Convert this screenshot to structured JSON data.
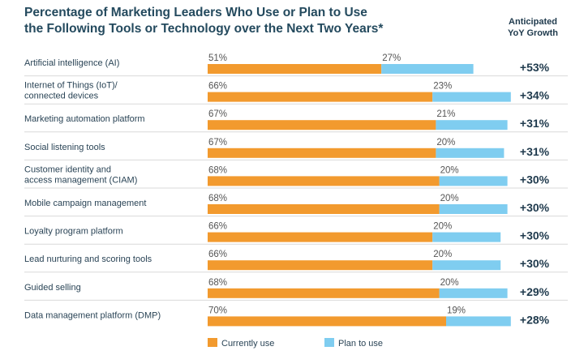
{
  "chart_data": {
    "type": "bar",
    "stacked": true,
    "orientation": "horizontal",
    "title_line1": "Percentage of Marketing Leaders Who Use or Plan to Use",
    "title_line2": "the Following Tools or Technology over the Next Two Years*",
    "growth_header_line1": "Anticipated",
    "growth_header_line2": "YoY Growth",
    "xlim": [
      0,
      100
    ],
    "categories": [
      [
        "Artificial intelligence (AI)"
      ],
      [
        "Internet of Things (IoT)/",
        "connected devices"
      ],
      [
        "Marketing automation platform"
      ],
      [
        "Social listening tools"
      ],
      [
        "Customer identity and",
        "access management (CIAM)"
      ],
      [
        "Mobile campaign management"
      ],
      [
        "Loyalty program platform"
      ],
      [
        "Lead nurturing and scoring tools"
      ],
      [
        "Guided selling"
      ],
      [
        "Data management platform (DMP)"
      ]
    ],
    "series": [
      {
        "name": "Currently use",
        "color": "#f29a2e",
        "values": [
          51,
          66,
          67,
          67,
          68,
          68,
          66,
          66,
          68,
          70
        ]
      },
      {
        "name": "Plan to use",
        "color": "#7fcdf0",
        "values": [
          27,
          23,
          21,
          20,
          20,
          20,
          20,
          20,
          20,
          19
        ]
      }
    ],
    "growth": [
      "+53%",
      "+34%",
      "+31%",
      "+31%",
      "+30%",
      "+30%",
      "+30%",
      "+30%",
      "+29%",
      "+28%"
    ],
    "divider_color": "#d9d9d9"
  }
}
